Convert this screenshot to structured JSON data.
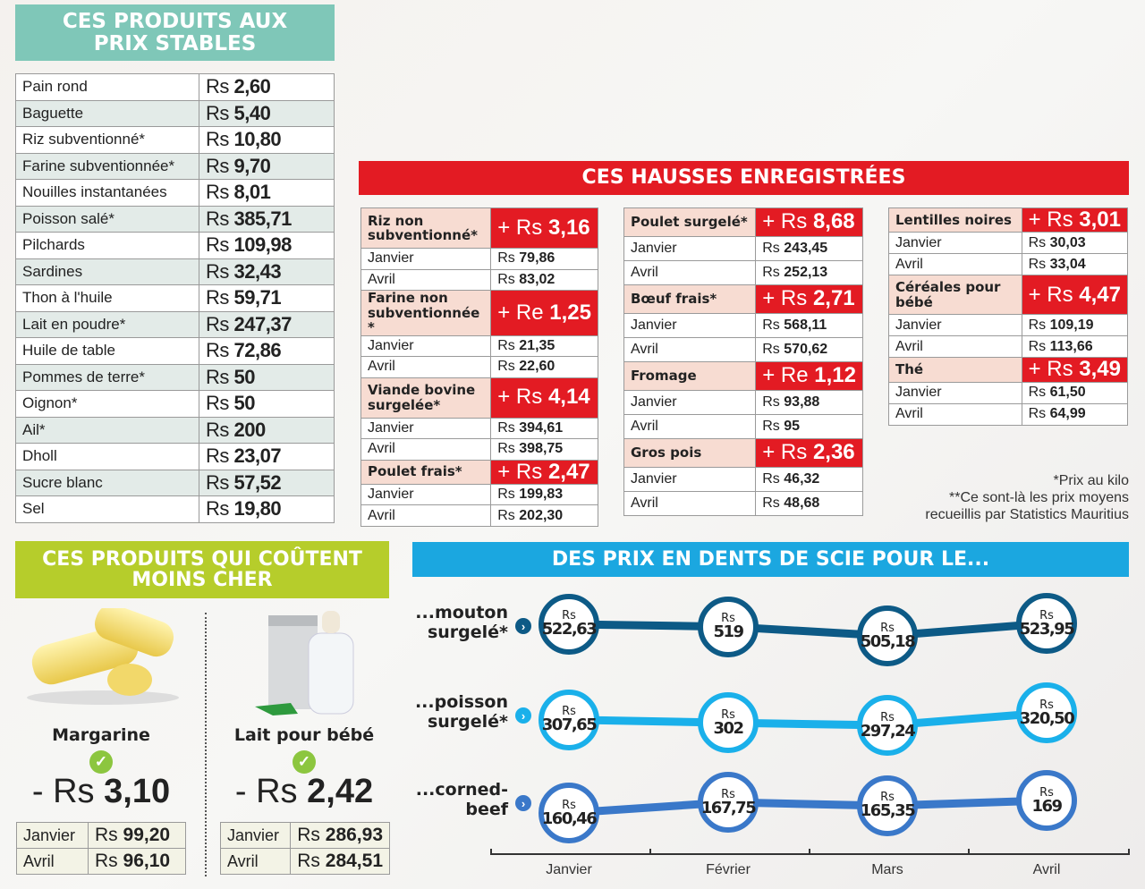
{
  "stable": {
    "title": "CES PRODUITS AUX PRIX STABLES",
    "currency": "Rs",
    "rows": [
      [
        "Pain rond",
        "2,60"
      ],
      [
        "Baguette",
        "5,40"
      ],
      [
        "Riz subventionné*",
        "10,80"
      ],
      [
        "Farine subventionnée*",
        "9,70"
      ],
      [
        "Nouilles instantanées",
        "8,01"
      ],
      [
        "Poisson salé*",
        "385,71"
      ],
      [
        "Pilchards",
        "109,98"
      ],
      [
        "Sardines",
        "32,43"
      ],
      [
        "Thon à l'huile",
        "59,71"
      ],
      [
        "Lait en poudre*",
        "247,37"
      ],
      [
        "Huile de table",
        "72,86"
      ],
      [
        "Pommes de terre*",
        "50"
      ],
      [
        "Oignon*",
        "50"
      ],
      [
        "Ail*",
        "200"
      ],
      [
        "Dholl",
        "23,07"
      ],
      [
        "Sucre blanc",
        "57,52"
      ],
      [
        "Sel",
        "19,80"
      ]
    ]
  },
  "increases": {
    "title": "CES HAUSSES ENREGISTRÉES",
    "columns": [
      [
        {
          "name": "Riz non subventionné*",
          "delta": "+ Rs 3,16",
          "jan": "79,86",
          "apr": "83,02"
        },
        {
          "name": "Farine non subventionnée *",
          "delta": "+ Re 1,25",
          "jan": "21,35",
          "apr": "22,60"
        },
        {
          "name": "Viande bovine surgelée*",
          "delta": "+ Rs 4,14",
          "jan": "394,61",
          "apr": "398,75"
        },
        {
          "name": "Poulet frais*",
          "delta": "+ Rs 2,47",
          "jan": "199,83",
          "apr": "202,30"
        }
      ],
      [
        {
          "name": "Poulet surgelé*",
          "delta": "+ Rs 8,68",
          "jan": "243,45",
          "apr": "252,13"
        },
        {
          "name": "Bœuf frais*",
          "delta": "+ Rs 2,71",
          "jan": "568,11",
          "apr": "570,62"
        },
        {
          "name": "Fromage",
          "delta": "+ Re 1,12",
          "jan": "93,88",
          "apr": "95"
        },
        {
          "name": "Gros pois",
          "delta": "+ Rs 2,36",
          "jan": "46,32",
          "apr": "48,68"
        }
      ],
      [
        {
          "name": "Lentilles noires",
          "delta": "+ Rs 3,01",
          "jan": "30,03",
          "apr": "33,04"
        },
        {
          "name": "Céréales pour bébé",
          "delta": "+ Rs 4,47",
          "jan": "109,19",
          "apr": "113,66"
        },
        {
          "name": "Thé",
          "delta": "+ Rs 3,49",
          "jan": "61,50",
          "apr": "64,99"
        }
      ]
    ],
    "jan_label": "Janvier",
    "apr_label": "Avril",
    "currency": "Rs"
  },
  "footnote": {
    "line1": "*Prix au kilo",
    "line2": "**Ce sont-là les prix moyens",
    "line3": "recueillis par Statistics Mauritius"
  },
  "cheaper": {
    "title": "CES PRODUITS QUI COÛTENT MOINS CHER",
    "items": [
      {
        "name": "Margarine",
        "delta_sign": "- Rs",
        "delta": "3,10",
        "jan": "99,20",
        "apr": "96,10"
      },
      {
        "name": "Lait pour bébé",
        "delta_sign": "- Rs",
        "delta": "2,42",
        "jan": "286,93",
        "apr": "284,51"
      }
    ],
    "jan_label": "Janvier",
    "apr_label": "Avril",
    "currency": "Rs"
  },
  "chart_data": {
    "type": "line",
    "title": "DES PRIX EN DENTS DE SCIE POUR LE...",
    "categories": [
      "Janvier",
      "Février",
      "Mars",
      "Avril"
    ],
    "unit": "Rs",
    "series": [
      {
        "name": "...mouton surgelé*",
        "values": [
          522.63,
          519,
          505.18,
          523.95
        ],
        "labels": [
          "522,63",
          "519",
          "505,18",
          "523,95"
        ],
        "color": "#0d5a86"
      },
      {
        "name": "...poisson surgelé*",
        "values": [
          307.65,
          302,
          297.24,
          320.5
        ],
        "labels": [
          "307,65",
          "302",
          "297,24",
          "320,50"
        ],
        "color": "#1ab0ea"
      },
      {
        "name": "...corned-beef",
        "values": [
          160.46,
          167.75,
          165.35,
          169
        ],
        "labels": [
          "160,46",
          "167,75",
          "165,35",
          "169"
        ],
        "color": "#3a78c9"
      }
    ]
  },
  "colors": {
    "teal": "#7fc7b8",
    "red": "#e31b23",
    "green": "#b6cd2b",
    "blue": "#1ba7e0"
  }
}
